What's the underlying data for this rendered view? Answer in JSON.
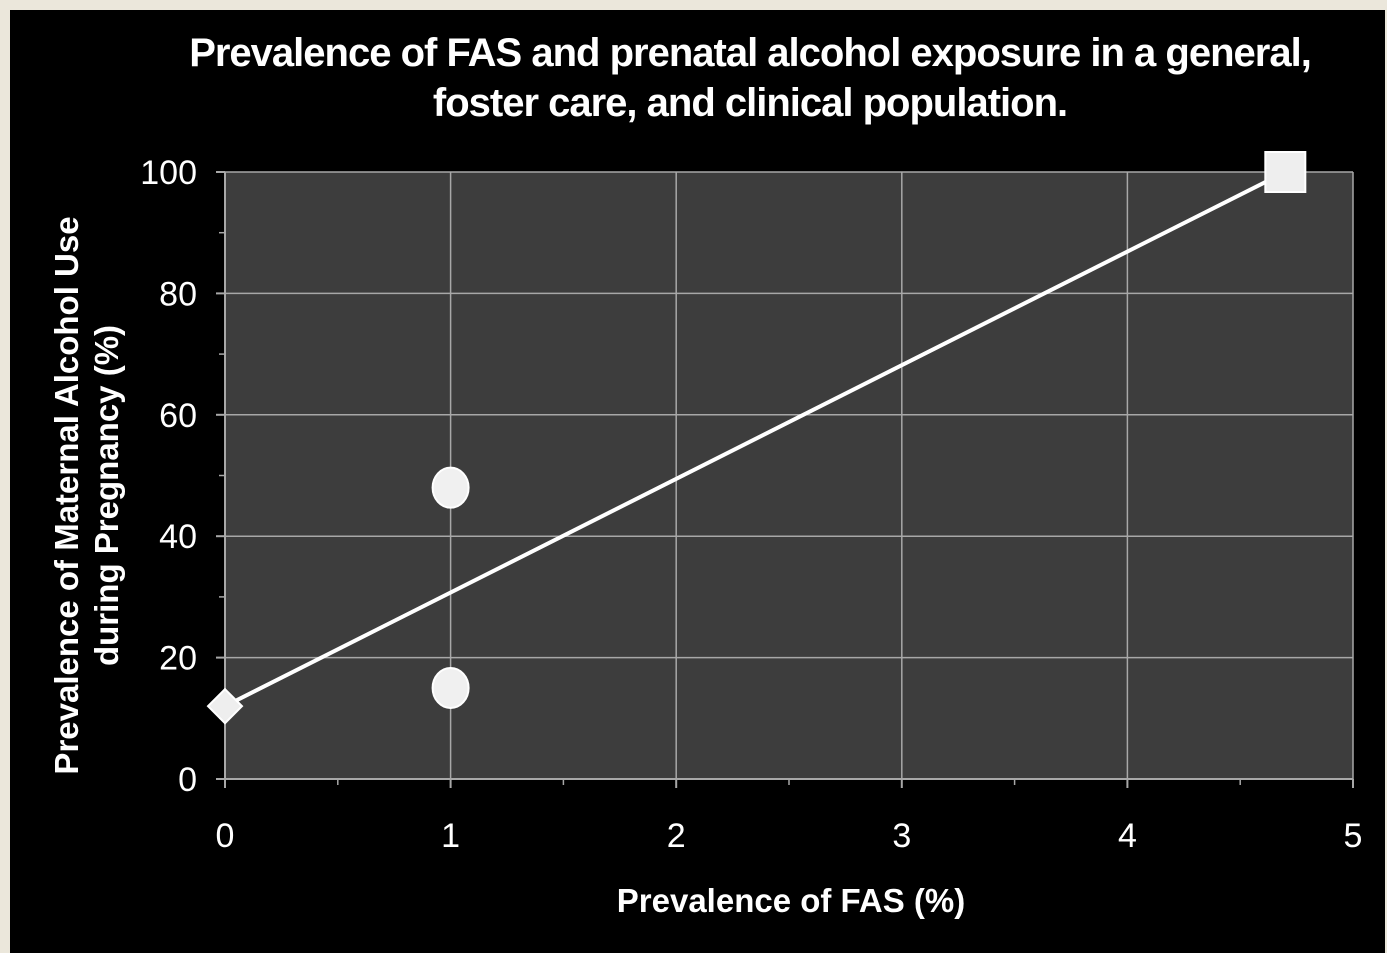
{
  "chart_data": {
    "type": "scatter",
    "title": "Prevalence of FAS and prenatal alcohol exposure in a general, foster care, and clinical population.",
    "xlabel": "Prevalence of FAS (%)",
    "ylabel": [
      "Prevalence of Maternal Alcohol Use",
      "during Pregnancy (%)"
    ],
    "xlim": [
      0,
      5
    ],
    "ylim": [
      0,
      100
    ],
    "xticks": [
      "0",
      "1",
      "2",
      "3",
      "4",
      "5"
    ],
    "yticks": [
      "0",
      "20",
      "40",
      "60",
      "80",
      "100"
    ],
    "grid": true,
    "legend": "none",
    "series": [
      {
        "marker": "diamond",
        "points": [
          {
            "x": 0,
            "y": 12
          }
        ]
      },
      {
        "marker": "circle",
        "points": [
          {
            "x": 1,
            "y": 48
          },
          {
            "x": 1,
            "y": 15
          }
        ]
      },
      {
        "marker": "square",
        "points": [
          {
            "x": 4.7,
            "y": 100
          }
        ]
      }
    ],
    "trendline": {
      "from": {
        "x": 0,
        "y": 12
      },
      "to": {
        "x": 4.7,
        "y": 100
      }
    },
    "colors": {
      "background": "#000000",
      "plot_area": "#3d3d3d",
      "grid": "#a8a8a8",
      "marks": "#ffffff"
    }
  }
}
